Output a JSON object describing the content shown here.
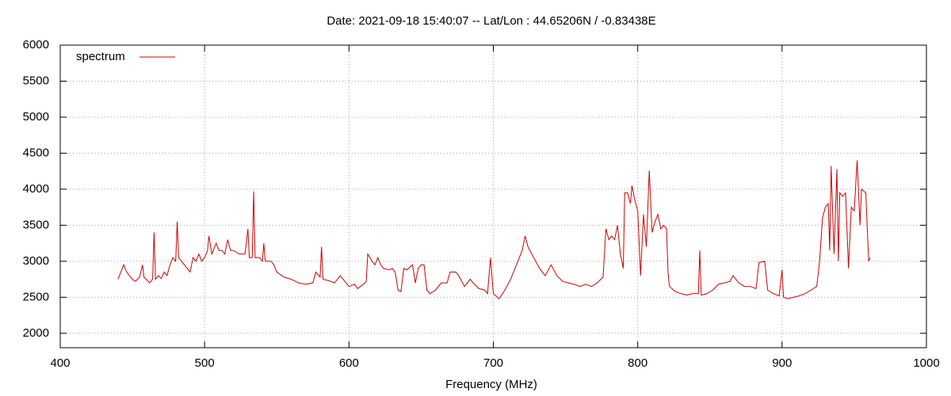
{
  "chart_data": {
    "type": "line",
    "title": "Date: 2021-09-18 15:40:07  --  Lat/Lon : 44.65206N / -0.83438E",
    "xlabel": "Frequency (MHz)",
    "x": [
      440,
      442,
      444,
      446,
      448,
      450,
      452,
      455,
      457,
      458,
      460,
      462,
      464,
      465,
      466,
      468,
      470,
      472,
      474,
      476,
      478,
      480,
      481,
      482,
      484,
      486,
      488,
      490,
      492,
      494,
      496,
      498,
      500,
      502,
      503,
      505,
      508,
      510,
      512,
      514,
      516,
      518,
      520,
      524,
      528,
      530,
      531,
      533,
      534,
      535,
      538,
      540,
      541,
      542,
      546,
      548,
      550,
      555,
      560,
      565,
      570,
      575,
      577,
      580,
      581,
      582,
      586,
      590,
      594,
      598,
      600,
      604,
      606,
      610,
      612,
      613,
      616,
      618,
      620,
      622,
      624,
      628,
      630,
      632,
      634,
      636,
      638,
      640,
      644,
      646,
      648,
      650,
      652,
      654,
      656,
      660,
      664,
      668,
      670,
      674,
      676,
      680,
      684,
      686,
      690,
      694,
      696,
      698,
      700,
      704,
      708,
      712,
      716,
      720,
      722,
      724,
      728,
      732,
      736,
      740,
      744,
      748,
      752,
      756,
      760,
      764,
      768,
      772,
      776,
      778,
      780,
      782,
      784,
      786,
      788,
      790,
      791,
      793,
      795,
      796,
      798,
      800,
      802,
      804,
      806,
      808,
      810,
      812,
      814,
      816,
      818,
      820,
      821,
      822,
      826,
      830,
      834,
      838,
      842,
      843,
      844,
      848,
      852,
      856,
      860,
      864,
      866,
      870,
      874,
      878,
      882,
      884,
      888,
      890,
      894,
      898,
      900,
      901,
      904,
      908,
      912,
      916,
      920,
      924,
      926,
      928,
      930,
      932,
      933,
      934,
      936,
      938,
      939,
      940,
      942,
      944,
      946,
      948,
      950,
      952,
      954,
      955,
      958,
      960,
      961
    ],
    "series": [
      {
        "name": "spectrum",
        "color": "#d00000",
        "values": [
          2750,
          2850,
          2950,
          2850,
          2800,
          2750,
          2720,
          2780,
          2950,
          2780,
          2740,
          2700,
          2750,
          3400,
          2750,
          2800,
          2760,
          2850,
          2800,
          2950,
          3050,
          3000,
          3550,
          3050,
          3000,
          2950,
          2900,
          2850,
          3050,
          3000,
          3100,
          3000,
          3050,
          3150,
          3350,
          3100,
          3250,
          3150,
          3150,
          3100,
          3300,
          3150,
          3150,
          3100,
          3100,
          3450,
          3050,
          3050,
          3970,
          3050,
          3050,
          3000,
          3250,
          3000,
          3000,
          2950,
          2850,
          2780,
          2750,
          2700,
          2680,
          2700,
          2850,
          2780,
          3200,
          2750,
          2730,
          2700,
          2800,
          2700,
          2650,
          2680,
          2620,
          2680,
          2720,
          3100,
          3000,
          2950,
          3050,
          2950,
          2900,
          2880,
          2900,
          2850,
          2600,
          2580,
          2900,
          2880,
          2950,
          2700,
          2900,
          2950,
          2950,
          2600,
          2550,
          2600,
          2700,
          2700,
          2850,
          2850,
          2800,
          2650,
          2750,
          2700,
          2620,
          2600,
          2550,
          3050,
          2550,
          2480,
          2600,
          2750,
          2950,
          3150,
          3350,
          3200,
          3050,
          2900,
          2800,
          2950,
          2800,
          2720,
          2700,
          2680,
          2650,
          2680,
          2650,
          2700,
          2780,
          3450,
          3300,
          3350,
          3300,
          3500,
          3100,
          2900,
          3950,
          3950,
          3800,
          4050,
          3850,
          3700,
          2800,
          3650,
          3200,
          4260,
          3400,
          3550,
          3650,
          3450,
          3500,
          3450,
          2850,
          2650,
          2580,
          2550,
          2530,
          2550,
          2550,
          3150,
          2530,
          2550,
          2600,
          2680,
          2700,
          2720,
          2800,
          2700,
          2650,
          2650,
          2620,
          2980,
          3000,
          2600,
          2550,
          2520,
          2880,
          2500,
          2480,
          2500,
          2520,
          2550,
          2600,
          2650,
          3000,
          3600,
          3750,
          3800,
          3150,
          4320,
          3100,
          4280,
          3000,
          3950,
          3900,
          3950,
          2900,
          3750,
          3700,
          4400,
          3500,
          4000,
          3950,
          3000,
          3050
        ]
      }
    ],
    "xlim": [
      400,
      1000
    ],
    "ylim": [
      1800,
      6000
    ],
    "xticks": [
      400,
      500,
      600,
      700,
      800,
      900,
      1000
    ],
    "yticks": [
      2000,
      2500,
      3000,
      3500,
      4000,
      4500,
      5000,
      5500,
      6000
    ],
    "grid": true,
    "legend": "top-left"
  }
}
